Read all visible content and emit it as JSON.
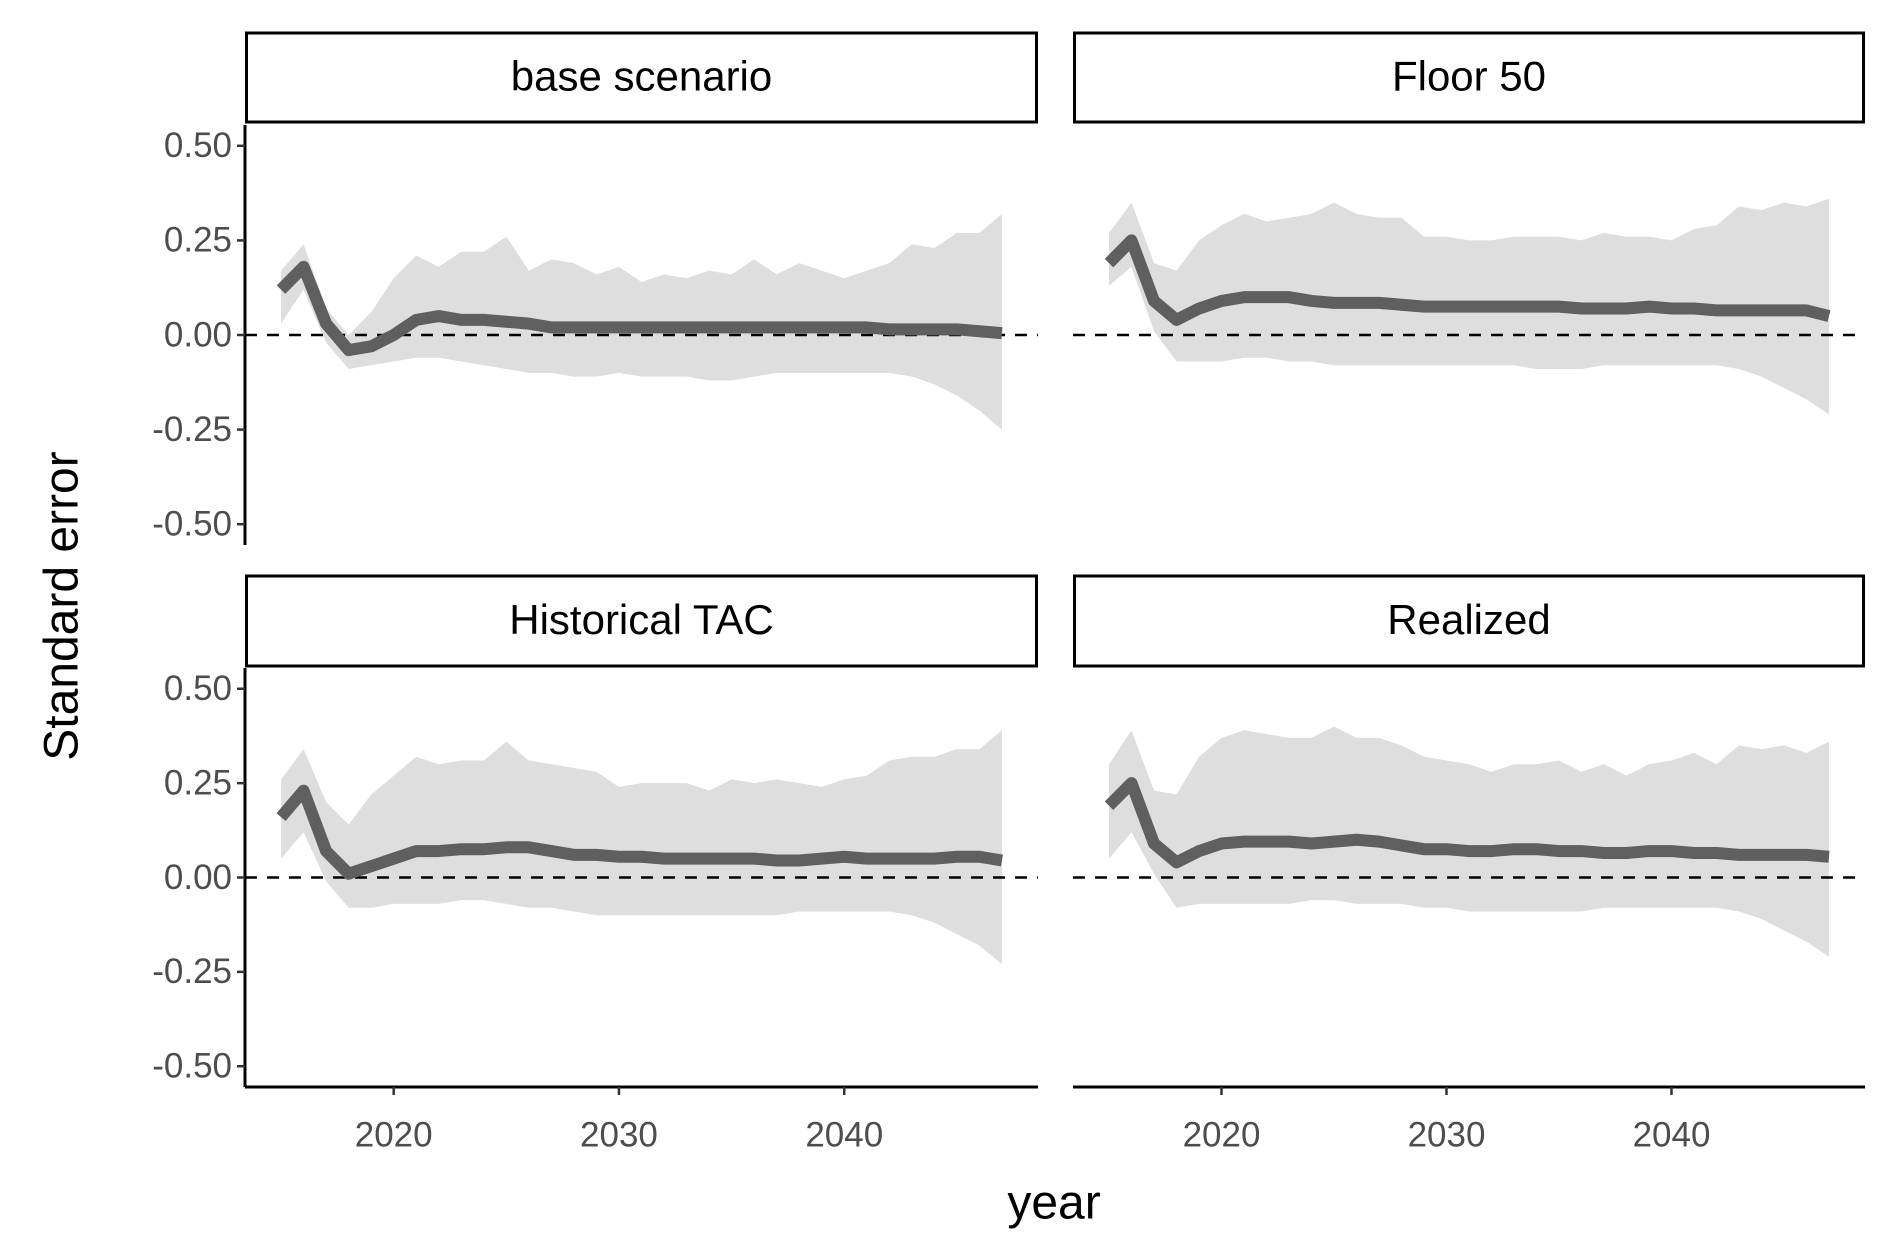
{
  "chart_data": {
    "type": "line",
    "x_label": "year",
    "y_label": "Standard error",
    "x": [
      2015,
      2016,
      2017,
      2018,
      2019,
      2020,
      2021,
      2022,
      2023,
      2024,
      2025,
      2026,
      2027,
      2028,
      2029,
      2030,
      2031,
      2032,
      2033,
      2034,
      2035,
      2036,
      2037,
      2038,
      2039,
      2040,
      2041,
      2042,
      2043,
      2044,
      2045,
      2046,
      2047
    ],
    "xlim": [
      2013.4,
      2048.6
    ],
    "xticks": [
      2020,
      2030,
      2040
    ],
    "ylim": [
      -0.555,
      0.555
    ],
    "yticks": [
      {
        "value": 0.5,
        "label": "0.50"
      },
      {
        "value": 0.25,
        "label": "0.25"
      },
      {
        "value": 0,
        "label": "0.00"
      },
      {
        "value": -0.25,
        "label": "-0.25"
      },
      {
        "value": -0.5,
        "label": "-0.50"
      }
    ],
    "hline": 0,
    "line_color": "#5f5f5f",
    "band_color": "#dedede",
    "panels": [
      {
        "title": "base scenario",
        "values": [
          0.12,
          0.18,
          0.03,
          -0.04,
          -0.03,
          0.0,
          0.04,
          0.05,
          0.04,
          0.04,
          0.035,
          0.03,
          0.02,
          0.02,
          0.02,
          0.02,
          0.02,
          0.02,
          0.02,
          0.02,
          0.02,
          0.02,
          0.02,
          0.02,
          0.02,
          0.02,
          0.02,
          0.015,
          0.015,
          0.015,
          0.015,
          0.01,
          0.005
        ],
        "upper": [
          0.17,
          0.24,
          0.07,
          0.0,
          0.06,
          0.15,
          0.21,
          0.18,
          0.22,
          0.22,
          0.26,
          0.17,
          0.2,
          0.19,
          0.16,
          0.18,
          0.14,
          0.16,
          0.15,
          0.17,
          0.16,
          0.2,
          0.16,
          0.19,
          0.17,
          0.15,
          0.17,
          0.19,
          0.24,
          0.23,
          0.27,
          0.27,
          0.32
        ],
        "lower": [
          0.03,
          0.12,
          -0.02,
          -0.09,
          -0.08,
          -0.07,
          -0.06,
          -0.06,
          -0.07,
          -0.08,
          -0.09,
          -0.1,
          -0.1,
          -0.11,
          -0.11,
          -0.1,
          -0.11,
          -0.11,
          -0.11,
          -0.12,
          -0.12,
          -0.11,
          -0.1,
          -0.1,
          -0.1,
          -0.1,
          -0.1,
          -0.1,
          -0.11,
          -0.13,
          -0.16,
          -0.2,
          -0.25
        ]
      },
      {
        "title": "Floor 50",
        "values": [
          0.19,
          0.25,
          0.09,
          0.04,
          0.07,
          0.09,
          0.1,
          0.1,
          0.1,
          0.09,
          0.085,
          0.085,
          0.085,
          0.08,
          0.075,
          0.075,
          0.075,
          0.075,
          0.075,
          0.075,
          0.075,
          0.07,
          0.07,
          0.07,
          0.075,
          0.07,
          0.07,
          0.065,
          0.065,
          0.065,
          0.065,
          0.065,
          0.05
        ],
        "upper": [
          0.27,
          0.35,
          0.19,
          0.17,
          0.25,
          0.29,
          0.32,
          0.3,
          0.31,
          0.32,
          0.35,
          0.32,
          0.31,
          0.31,
          0.26,
          0.26,
          0.25,
          0.25,
          0.26,
          0.26,
          0.26,
          0.25,
          0.27,
          0.26,
          0.26,
          0.25,
          0.28,
          0.29,
          0.34,
          0.33,
          0.35,
          0.34,
          0.36
        ],
        "lower": [
          0.13,
          0.18,
          0.01,
          -0.07,
          -0.07,
          -0.07,
          -0.06,
          -0.06,
          -0.07,
          -0.07,
          -0.08,
          -0.08,
          -0.08,
          -0.08,
          -0.08,
          -0.08,
          -0.08,
          -0.08,
          -0.08,
          -0.09,
          -0.09,
          -0.09,
          -0.08,
          -0.08,
          -0.08,
          -0.08,
          -0.08,
          -0.08,
          -0.09,
          -0.11,
          -0.14,
          -0.17,
          -0.21
        ]
      },
      {
        "title": "Historical TAC",
        "values": [
          0.16,
          0.23,
          0.07,
          0.01,
          0.03,
          0.05,
          0.07,
          0.07,
          0.075,
          0.075,
          0.08,
          0.08,
          0.07,
          0.06,
          0.06,
          0.055,
          0.055,
          0.05,
          0.05,
          0.05,
          0.05,
          0.05,
          0.045,
          0.045,
          0.05,
          0.055,
          0.05,
          0.05,
          0.05,
          0.05,
          0.055,
          0.055,
          0.045
        ],
        "upper": [
          0.26,
          0.34,
          0.2,
          0.14,
          0.22,
          0.27,
          0.32,
          0.3,
          0.31,
          0.31,
          0.36,
          0.31,
          0.3,
          0.29,
          0.28,
          0.24,
          0.25,
          0.25,
          0.25,
          0.23,
          0.26,
          0.25,
          0.26,
          0.25,
          0.24,
          0.26,
          0.27,
          0.31,
          0.32,
          0.32,
          0.34,
          0.34,
          0.39
        ],
        "lower": [
          0.05,
          0.12,
          -0.01,
          -0.08,
          -0.08,
          -0.07,
          -0.07,
          -0.07,
          -0.06,
          -0.06,
          -0.07,
          -0.08,
          -0.08,
          -0.09,
          -0.1,
          -0.1,
          -0.1,
          -0.1,
          -0.1,
          -0.1,
          -0.1,
          -0.1,
          -0.1,
          -0.09,
          -0.09,
          -0.09,
          -0.09,
          -0.09,
          -0.1,
          -0.12,
          -0.15,
          -0.18,
          -0.23
        ]
      },
      {
        "title": "Realized",
        "values": [
          0.19,
          0.25,
          0.09,
          0.04,
          0.07,
          0.09,
          0.095,
          0.095,
          0.095,
          0.09,
          0.095,
          0.1,
          0.095,
          0.085,
          0.075,
          0.075,
          0.07,
          0.07,
          0.075,
          0.075,
          0.07,
          0.07,
          0.065,
          0.065,
          0.07,
          0.07,
          0.065,
          0.065,
          0.06,
          0.06,
          0.06,
          0.06,
          0.055
        ],
        "upper": [
          0.3,
          0.39,
          0.23,
          0.22,
          0.32,
          0.37,
          0.39,
          0.38,
          0.37,
          0.37,
          0.4,
          0.37,
          0.37,
          0.35,
          0.32,
          0.31,
          0.3,
          0.28,
          0.3,
          0.3,
          0.31,
          0.28,
          0.3,
          0.27,
          0.3,
          0.31,
          0.33,
          0.3,
          0.35,
          0.34,
          0.35,
          0.33,
          0.36
        ],
        "lower": [
          0.05,
          0.12,
          0.01,
          -0.08,
          -0.07,
          -0.07,
          -0.07,
          -0.07,
          -0.07,
          -0.06,
          -0.06,
          -0.07,
          -0.07,
          -0.07,
          -0.08,
          -0.08,
          -0.09,
          -0.09,
          -0.09,
          -0.09,
          -0.09,
          -0.09,
          -0.08,
          -0.08,
          -0.08,
          -0.08,
          -0.08,
          -0.08,
          -0.09,
          -0.11,
          -0.14,
          -0.17,
          -0.21
        ]
      }
    ]
  }
}
